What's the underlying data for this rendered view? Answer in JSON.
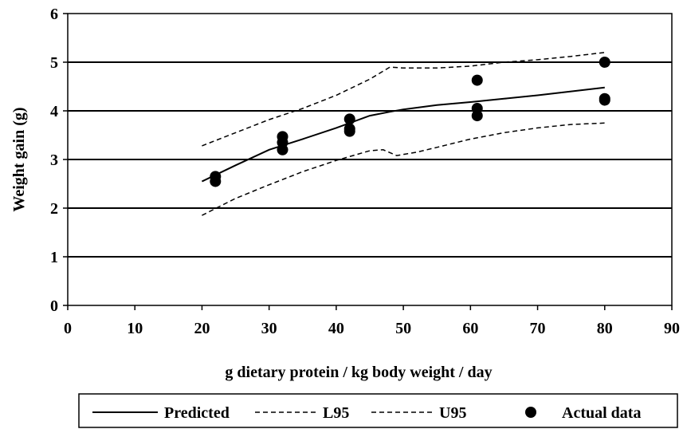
{
  "chart_data": {
    "type": "line",
    "title": "",
    "xlabel": "g dietary protein / kg body weight / day",
    "ylabel": "Weight gain (g)",
    "xlim": [
      0,
      90
    ],
    "ylim": [
      0,
      6
    ],
    "x_ticks": [
      "0",
      "10",
      "20",
      "30",
      "40",
      "50",
      "60",
      "70",
      "80",
      "90"
    ],
    "y_ticks": [
      "0",
      "1",
      "2",
      "3",
      "4",
      "5",
      "6"
    ],
    "grid": "horizontal",
    "legend_position": "bottom",
    "series": [
      {
        "name": "Predicted",
        "style": "solid",
        "color": "#000000",
        "points": [
          [
            20,
            2.55
          ],
          [
            25,
            2.88
          ],
          [
            30,
            3.2
          ],
          [
            35,
            3.42
          ],
          [
            40,
            3.65
          ],
          [
            45,
            3.9
          ],
          [
            48,
            3.98
          ],
          [
            50,
            4.03
          ],
          [
            55,
            4.12
          ],
          [
            60,
            4.18
          ],
          [
            65,
            4.25
          ],
          [
            70,
            4.32
          ],
          [
            75,
            4.4
          ],
          [
            80,
            4.48
          ]
        ]
      },
      {
        "name": "L95",
        "style": "dashed",
        "color": "#000000",
        "points": [
          [
            20,
            1.85
          ],
          [
            25,
            2.2
          ],
          [
            30,
            2.48
          ],
          [
            35,
            2.75
          ],
          [
            40,
            2.98
          ],
          [
            45,
            3.18
          ],
          [
            47,
            3.2
          ],
          [
            49,
            3.08
          ],
          [
            52,
            3.15
          ],
          [
            55,
            3.25
          ],
          [
            60,
            3.42
          ],
          [
            65,
            3.55
          ],
          [
            70,
            3.65
          ],
          [
            75,
            3.72
          ],
          [
            80,
            3.75
          ]
        ]
      },
      {
        "name": "U95",
        "style": "dashed",
        "color": "#000000",
        "points": [
          [
            20,
            3.28
          ],
          [
            25,
            3.55
          ],
          [
            30,
            3.82
          ],
          [
            35,
            4.05
          ],
          [
            40,
            4.32
          ],
          [
            45,
            4.65
          ],
          [
            48,
            4.9
          ],
          [
            50,
            4.88
          ],
          [
            55,
            4.88
          ],
          [
            60,
            4.92
          ],
          [
            65,
            5.0
          ],
          [
            70,
            5.05
          ],
          [
            75,
            5.12
          ],
          [
            80,
            5.2
          ]
        ]
      },
      {
        "name": "Actual data",
        "style": "markers",
        "color": "#000000",
        "points": [
          [
            22,
            2.55
          ],
          [
            22,
            2.65
          ],
          [
            32,
            3.2
          ],
          [
            32,
            3.35
          ],
          [
            32,
            3.47
          ],
          [
            42,
            3.58
          ],
          [
            42,
            3.63
          ],
          [
            42,
            3.83
          ],
          [
            61,
            3.9
          ],
          [
            61,
            4.05
          ],
          [
            61,
            4.63
          ],
          [
            80,
            4.22
          ],
          [
            80,
            4.25
          ],
          [
            80,
            5.0
          ]
        ]
      }
    ]
  }
}
